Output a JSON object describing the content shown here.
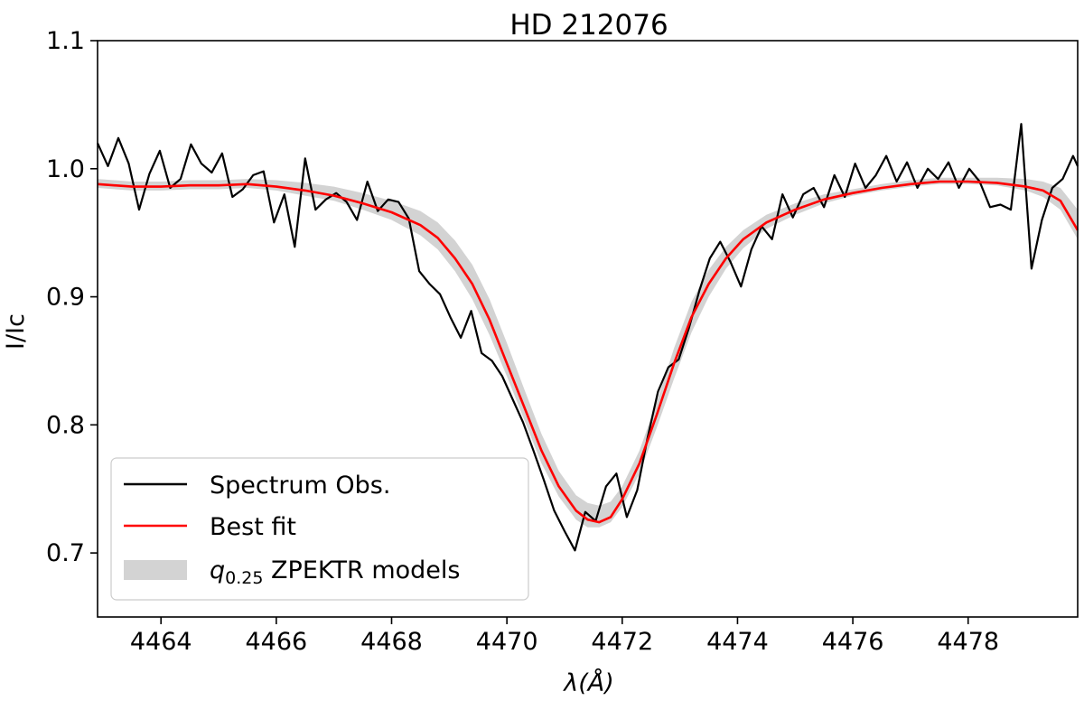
{
  "chart_data": {
    "type": "line",
    "title": "HD 212076",
    "xlabel": "λ(Å)",
    "ylabel": "I/Ic",
    "xlim": [
      4462.9,
      4479.9
    ],
    "ylim": [
      0.65,
      1.1
    ],
    "xticks": [
      4464,
      4466,
      4468,
      4470,
      4472,
      4474,
      4476,
      4478
    ],
    "yticks": [
      0.7,
      0.8,
      0.9,
      1.0,
      1.1
    ],
    "grid": false,
    "legend_position": "lower-left",
    "legend": [
      {
        "label": "Spectrum Obs.",
        "style": "line",
        "color": "#000000"
      },
      {
        "label": "Best fit",
        "style": "line",
        "color": "#ff0000"
      },
      {
        "label_math": "q",
        "label_sub": "0.25",
        "label_rest": " ZPEKTR models",
        "style": "band",
        "color": "#d3d3d3"
      }
    ],
    "series": [
      {
        "name": "Spectrum Obs.",
        "color": "#000000",
        "x": [
          4462.9,
          4463.08,
          4463.26,
          4463.44,
          4463.62,
          4463.8,
          4463.98,
          4464.16,
          4464.34,
          4464.52,
          4464.7,
          4464.88,
          4465.06,
          4465.24,
          4465.42,
          4465.6,
          4465.78,
          4465.96,
          4466.14,
          4466.32,
          4466.5,
          4466.68,
          4466.86,
          4467.04,
          4467.22,
          4467.4,
          4467.58,
          4467.76,
          4467.94,
          4468.12,
          4468.3,
          4468.48,
          4468.66,
          4468.84,
          4469.02,
          4469.2,
          4469.38,
          4469.56,
          4469.74,
          4469.92,
          4470.1,
          4470.28,
          4470.46,
          4470.64,
          4470.82,
          4471.0,
          4471.18,
          4471.36,
          4471.54,
          4471.72,
          4471.9,
          4472.08,
          4472.26,
          4472.44,
          4472.62,
          4472.8,
          4472.98,
          4473.16,
          4473.34,
          4473.52,
          4473.7,
          4473.88,
          4474.06,
          4474.24,
          4474.42,
          4474.6,
          4474.78,
          4474.96,
          4475.14,
          4475.32,
          4475.5,
          4475.68,
          4475.86,
          4476.04,
          4476.22,
          4476.4,
          4476.58,
          4476.76,
          4476.94,
          4477.12,
          4477.3,
          4477.48,
          4477.66,
          4477.84,
          4478.02,
          4478.2,
          4478.38,
          4478.56,
          4478.74,
          4478.92,
          4479.1,
          4479.28,
          4479.46,
          4479.64,
          4479.82,
          4479.9
        ],
        "y": [
          1.02,
          1.002,
          1.024,
          1.004,
          0.968,
          0.996,
          1.014,
          0.985,
          0.992,
          1.019,
          1.004,
          0.997,
          1.012,
          0.978,
          0.984,
          0.995,
          0.998,
          0.958,
          0.98,
          0.939,
          1.008,
          0.968,
          0.976,
          0.981,
          0.974,
          0.96,
          0.99,
          0.967,
          0.976,
          0.974,
          0.961,
          0.92,
          0.91,
          0.902,
          0.884,
          0.868,
          0.889,
          0.856,
          0.85,
          0.838,
          0.82,
          0.802,
          0.78,
          0.757,
          0.733,
          0.717,
          0.702,
          0.732,
          0.725,
          0.752,
          0.762,
          0.728,
          0.749,
          0.79,
          0.826,
          0.845,
          0.851,
          0.876,
          0.905,
          0.93,
          0.943,
          0.927,
          0.908,
          0.937,
          0.955,
          0.945,
          0.98,
          0.962,
          0.98,
          0.985,
          0.97,
          0.995,
          0.978,
          1.004,
          0.985,
          0.995,
          1.01,
          0.99,
          1.005,
          0.985,
          1.0,
          0.992,
          1.005,
          0.985,
          1.0,
          0.99,
          0.97,
          0.972,
          0.968,
          1.035,
          0.922,
          0.96,
          0.985,
          0.992,
          1.01,
          1.002
        ]
      },
      {
        "name": "Best fit",
        "color": "#ff0000",
        "x": [
          4462.9,
          4463.5,
          4464.0,
          4464.5,
          4465.0,
          4465.5,
          4466.0,
          4466.5,
          4467.0,
          4467.5,
          4468.0,
          4468.5,
          4468.8,
          4469.1,
          4469.4,
          4469.7,
          4470.0,
          4470.3,
          4470.6,
          4470.9,
          4471.2,
          4471.4,
          4471.6,
          4471.8,
          4472.0,
          4472.3,
          4472.6,
          4472.9,
          4473.2,
          4473.5,
          4473.8,
          4474.1,
          4474.5,
          4475.0,
          4475.5,
          4476.0,
          4476.5,
          4477.0,
          4477.5,
          4478.0,
          4478.5,
          4479.0,
          4479.3,
          4479.6,
          4479.9
        ],
        "y": [
          0.988,
          0.986,
          0.986,
          0.987,
          0.987,
          0.988,
          0.986,
          0.983,
          0.979,
          0.973,
          0.966,
          0.956,
          0.946,
          0.93,
          0.91,
          0.882,
          0.848,
          0.814,
          0.78,
          0.752,
          0.733,
          0.726,
          0.724,
          0.728,
          0.742,
          0.77,
          0.808,
          0.848,
          0.884,
          0.91,
          0.93,
          0.945,
          0.958,
          0.968,
          0.976,
          0.981,
          0.985,
          0.988,
          0.99,
          0.99,
          0.989,
          0.986,
          0.983,
          0.975,
          0.952
        ]
      }
    ],
    "band": {
      "name": "q0.25 ZPEKTR models",
      "color": "#d3d3d3",
      "x": [
        4462.9,
        4463.5,
        4464.0,
        4464.5,
        4465.0,
        4465.5,
        4466.0,
        4466.5,
        4467.0,
        4467.5,
        4468.0,
        4468.5,
        4468.8,
        4469.1,
        4469.4,
        4469.7,
        4470.0,
        4470.3,
        4470.6,
        4470.9,
        4471.2,
        4471.4,
        4471.6,
        4471.8,
        4472.0,
        4472.3,
        4472.6,
        4472.9,
        4473.2,
        4473.5,
        4473.8,
        4474.1,
        4474.5,
        4475.0,
        4475.5,
        4476.0,
        4476.5,
        4477.0,
        4477.5,
        4478.0,
        4478.5,
        4479.0,
        4479.3,
        4479.6,
        4479.9
      ],
      "lower": [
        0.985,
        0.983,
        0.983,
        0.984,
        0.984,
        0.985,
        0.983,
        0.979,
        0.975,
        0.968,
        0.96,
        0.948,
        0.937,
        0.92,
        0.898,
        0.87,
        0.838,
        0.804,
        0.77,
        0.744,
        0.726,
        0.72,
        0.72,
        0.724,
        0.736,
        0.762,
        0.798,
        0.836,
        0.872,
        0.9,
        0.922,
        0.938,
        0.953,
        0.964,
        0.973,
        0.979,
        0.983,
        0.986,
        0.988,
        0.988,
        0.987,
        0.983,
        0.978,
        0.968,
        0.945
      ],
      "upper": [
        0.992,
        0.99,
        0.99,
        0.991,
        0.991,
        0.992,
        0.991,
        0.989,
        0.986,
        0.981,
        0.975,
        0.967,
        0.958,
        0.944,
        0.925,
        0.898,
        0.864,
        0.828,
        0.793,
        0.764,
        0.745,
        0.739,
        0.737,
        0.74,
        0.752,
        0.78,
        0.818,
        0.86,
        0.896,
        0.921,
        0.939,
        0.952,
        0.964,
        0.973,
        0.98,
        0.984,
        0.988,
        0.991,
        0.993,
        0.993,
        0.993,
        0.992,
        0.99,
        0.985,
        0.968
      ]
    }
  }
}
